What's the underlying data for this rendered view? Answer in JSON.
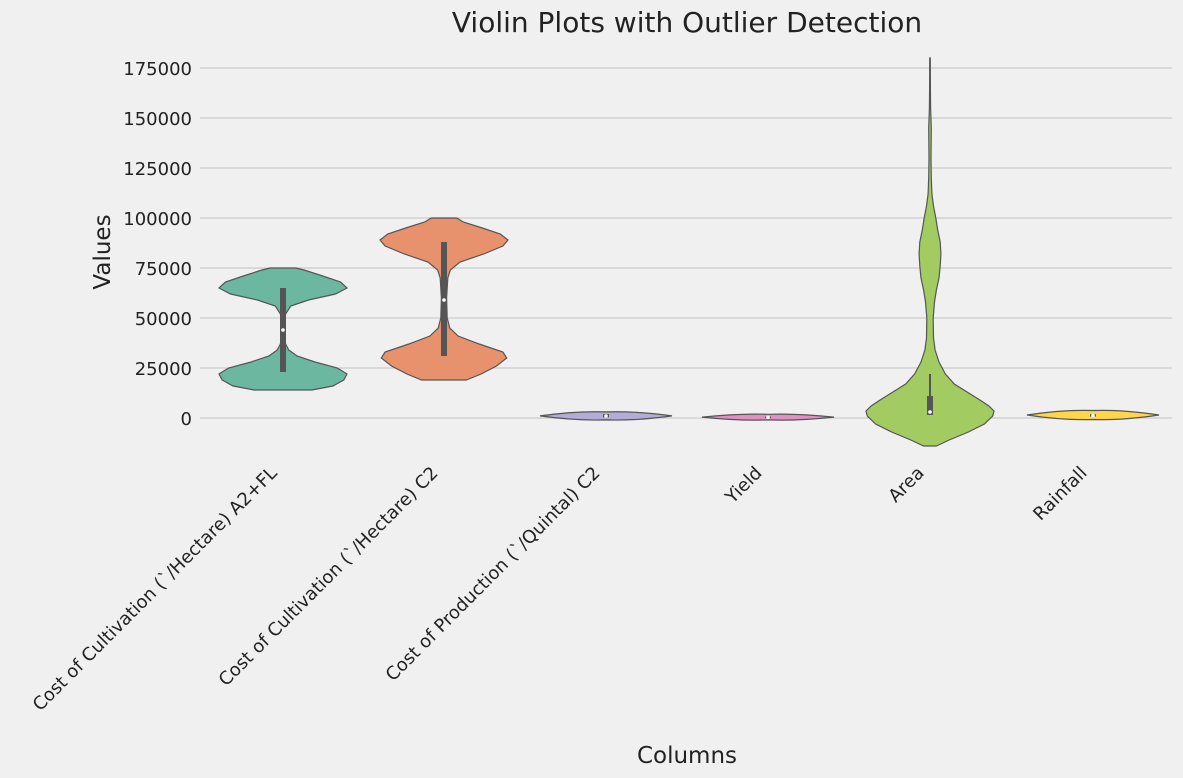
{
  "chart_data": {
    "type": "violin",
    "title": "Violin Plots with Outlier Detection",
    "xlabel": "Columns",
    "ylabel": "Values",
    "ylim": [
      -14000,
      180000
    ],
    "yticks": [
      0,
      25000,
      50000,
      75000,
      100000,
      125000,
      150000,
      175000
    ],
    "grid": "horizontal",
    "categories": [
      "Cost of Cultivation (`/Hectare) A2+FL",
      "Cost of Cultivation (`/Hectare) C2",
      "Cost of Production (`/Quintal) C2",
      "Yield",
      "Area",
      "Rainfall"
    ],
    "series": [
      {
        "color": "#6cb7a0",
        "violin_min": 14000,
        "violin_max": 75000,
        "box": {
          "q1": 23000,
          "median": 44000,
          "q3": 65000
        },
        "density": [
          [
            14000,
            0.45
          ],
          [
            16000,
            0.78
          ],
          [
            19000,
            0.95
          ],
          [
            22000,
            1.0
          ],
          [
            25000,
            0.85
          ],
          [
            28000,
            0.5
          ],
          [
            31000,
            0.22
          ],
          [
            34000,
            0.09
          ],
          [
            37000,
            0.04
          ],
          [
            42000,
            0.02
          ],
          [
            47000,
            0.02
          ],
          [
            52000,
            0.04
          ],
          [
            56000,
            0.12
          ],
          [
            59000,
            0.4
          ],
          [
            62000,
            0.82
          ],
          [
            65000,
            1.0
          ],
          [
            68000,
            0.9
          ],
          [
            71000,
            0.62
          ],
          [
            74000,
            0.33
          ],
          [
            75000,
            0.2
          ]
        ]
      },
      {
        "color": "#e8916d",
        "violin_min": 19000,
        "violin_max": 100000,
        "box": {
          "q1": 31000,
          "median": 59000,
          "q3": 88000
        },
        "density": [
          [
            19000,
            0.35
          ],
          [
            22000,
            0.58
          ],
          [
            26000,
            0.82
          ],
          [
            30000,
            0.98
          ],
          [
            33000,
            0.92
          ],
          [
            37000,
            0.55
          ],
          [
            41000,
            0.22
          ],
          [
            45000,
            0.09
          ],
          [
            50000,
            0.05
          ],
          [
            60000,
            0.04
          ],
          [
            70000,
            0.06
          ],
          [
            74000,
            0.1
          ],
          [
            78000,
            0.25
          ],
          [
            82000,
            0.62
          ],
          [
            86000,
            0.92
          ],
          [
            89000,
            1.0
          ],
          [
            92000,
            0.88
          ],
          [
            95000,
            0.6
          ],
          [
            98000,
            0.3
          ],
          [
            100000,
            0.2
          ]
        ]
      },
      {
        "color": "#b3acd6",
        "violin_min": -200,
        "violin_max": 2300,
        "box": {
          "q1": 300,
          "median": 1000,
          "q3": 2000
        },
        "density": [
          [
            -200,
            0.3
          ],
          [
            0,
            1.0
          ],
          [
            300,
            0.55
          ],
          [
            700,
            0.3
          ],
          [
            1200,
            0.35
          ],
          [
            1800,
            0.85
          ],
          [
            2100,
            1.0
          ],
          [
            2300,
            0.4
          ]
        ]
      },
      {
        "color": "#e38fc2",
        "violin_min": -200,
        "violin_max": 1100,
        "box": {
          "q1": 0,
          "median": 300,
          "q3": 700
        },
        "density": [
          [
            -200,
            0.5
          ],
          [
            0,
            1.0
          ],
          [
            300,
            0.9
          ],
          [
            700,
            0.9
          ],
          [
            1000,
            0.9
          ],
          [
            1100,
            0.4
          ]
        ]
      },
      {
        "color": "#a2cb62",
        "violin_min": -14000,
        "violin_max": 180000,
        "box": {
          "q1": 1500,
          "median": 3000,
          "q3": 11000,
          "whisker_high": 22000
        },
        "density": [
          [
            -14000,
            0.1
          ],
          [
            -11000,
            0.3
          ],
          [
            -7000,
            0.6
          ],
          [
            -3000,
            0.85
          ],
          [
            1000,
            0.98
          ],
          [
            3500,
            1.0
          ],
          [
            6000,
            0.92
          ],
          [
            9000,
            0.78
          ],
          [
            13000,
            0.58
          ],
          [
            17000,
            0.38
          ],
          [
            22000,
            0.24
          ],
          [
            28000,
            0.14
          ],
          [
            34000,
            0.08
          ],
          [
            40000,
            0.055
          ],
          [
            50000,
            0.05
          ],
          [
            58000,
            0.07
          ],
          [
            64000,
            0.1
          ],
          [
            70000,
            0.14
          ],
          [
            76000,
            0.16
          ],
          [
            82000,
            0.17
          ],
          [
            88000,
            0.16
          ],
          [
            94000,
            0.12
          ],
          [
            100000,
            0.09
          ],
          [
            106000,
            0.055
          ],
          [
            112000,
            0.03
          ],
          [
            120000,
            0.02
          ],
          [
            130000,
            0.015
          ],
          [
            145000,
            0.02
          ],
          [
            155000,
            0.01
          ],
          [
            165000,
            0.006
          ],
          [
            180000,
            0.004
          ]
        ]
      },
      {
        "color": "#ffd54a",
        "violin_min": 0,
        "violin_max": 3000,
        "box": {
          "q1": 700,
          "median": 1200,
          "q3": 1900
        },
        "density": [
          [
            0,
            0.35
          ],
          [
            500,
            1.0
          ],
          [
            1000,
            0.9
          ],
          [
            1500,
            0.8
          ],
          [
            2000,
            0.55
          ],
          [
            2500,
            0.3
          ],
          [
            3000,
            0.1
          ]
        ]
      }
    ]
  }
}
